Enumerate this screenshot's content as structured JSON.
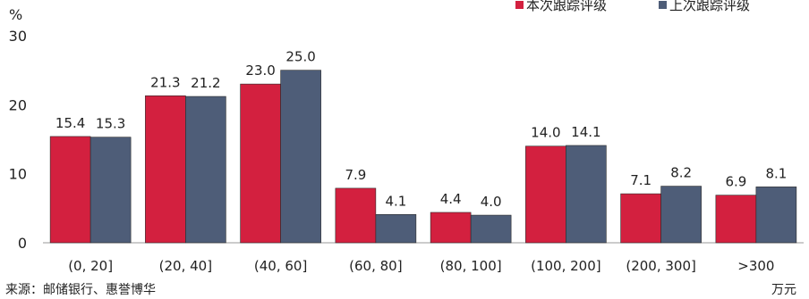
{
  "chart_data": {
    "type": "bar",
    "ylabel": "%",
    "xunit": "万元",
    "ylim": [
      0,
      30
    ],
    "yticks": [
      0,
      10,
      20,
      30
    ],
    "grid": false,
    "legend_position": "top-right",
    "categories": [
      "(0, 20]",
      "(20, 40]",
      "(40, 60]",
      "(60, 80]",
      "(80, 100]",
      "(100, 200]",
      "(200, 300]",
      ">300"
    ],
    "series": [
      {
        "name": "本次跟踪评级",
        "color": "#d3203f",
        "values": [
          15.4,
          21.3,
          23.0,
          7.9,
          4.4,
          14.0,
          7.1,
          6.9
        ],
        "labels": [
          "15.4",
          "21.3",
          "23.0",
          "7.9",
          "4.4",
          "14.0",
          "7.1",
          "6.9"
        ]
      },
      {
        "name": "上次跟踪评级",
        "color": "#4e5d78",
        "values": [
          15.3,
          21.2,
          25.0,
          4.1,
          4.0,
          14.1,
          8.2,
          8.1
        ],
        "labels": [
          "15.3",
          "21.2",
          "25.0",
          "4.1",
          "4.0",
          "14.1",
          "8.2",
          "8.1"
        ]
      }
    ],
    "source": "来源：邮储银行、惠誉博华"
  }
}
